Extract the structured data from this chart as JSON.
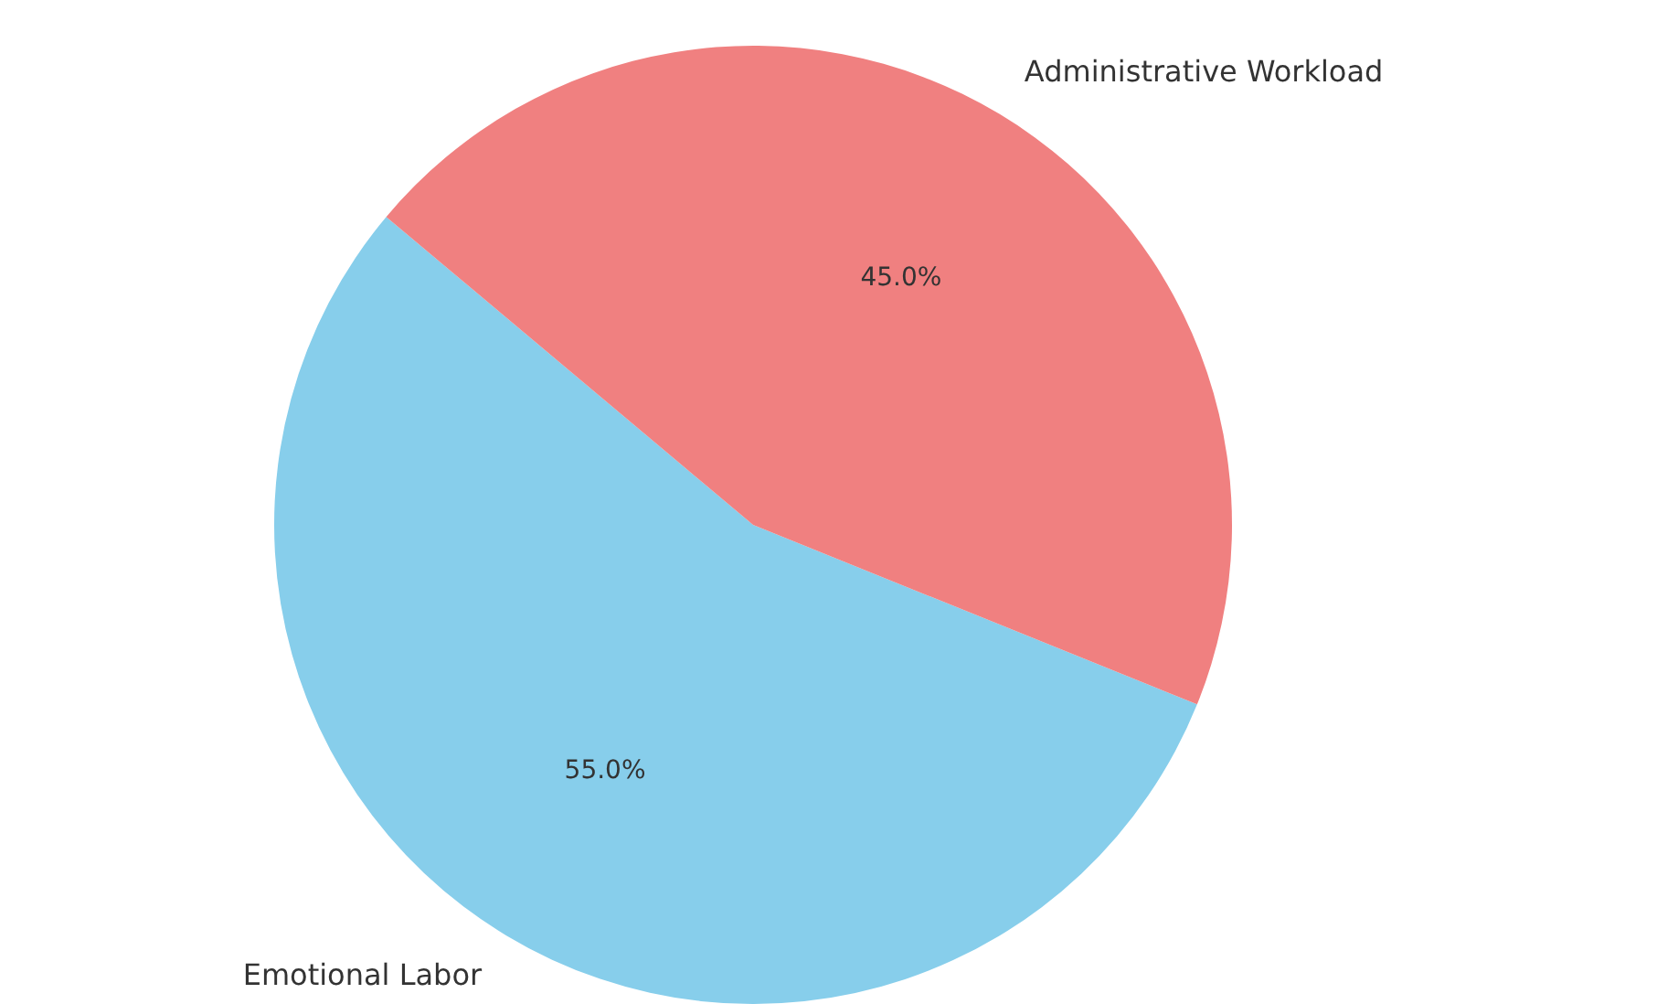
{
  "chart_data": {
    "type": "pie",
    "categories": [
      "Emotional Labor",
      "Administrative Workload"
    ],
    "values": [
      55,
      45
    ],
    "colors": [
      "#87ceeb",
      "#f08080"
    ],
    "value_labels": [
      "55.0%",
      "45.0%"
    ]
  }
}
